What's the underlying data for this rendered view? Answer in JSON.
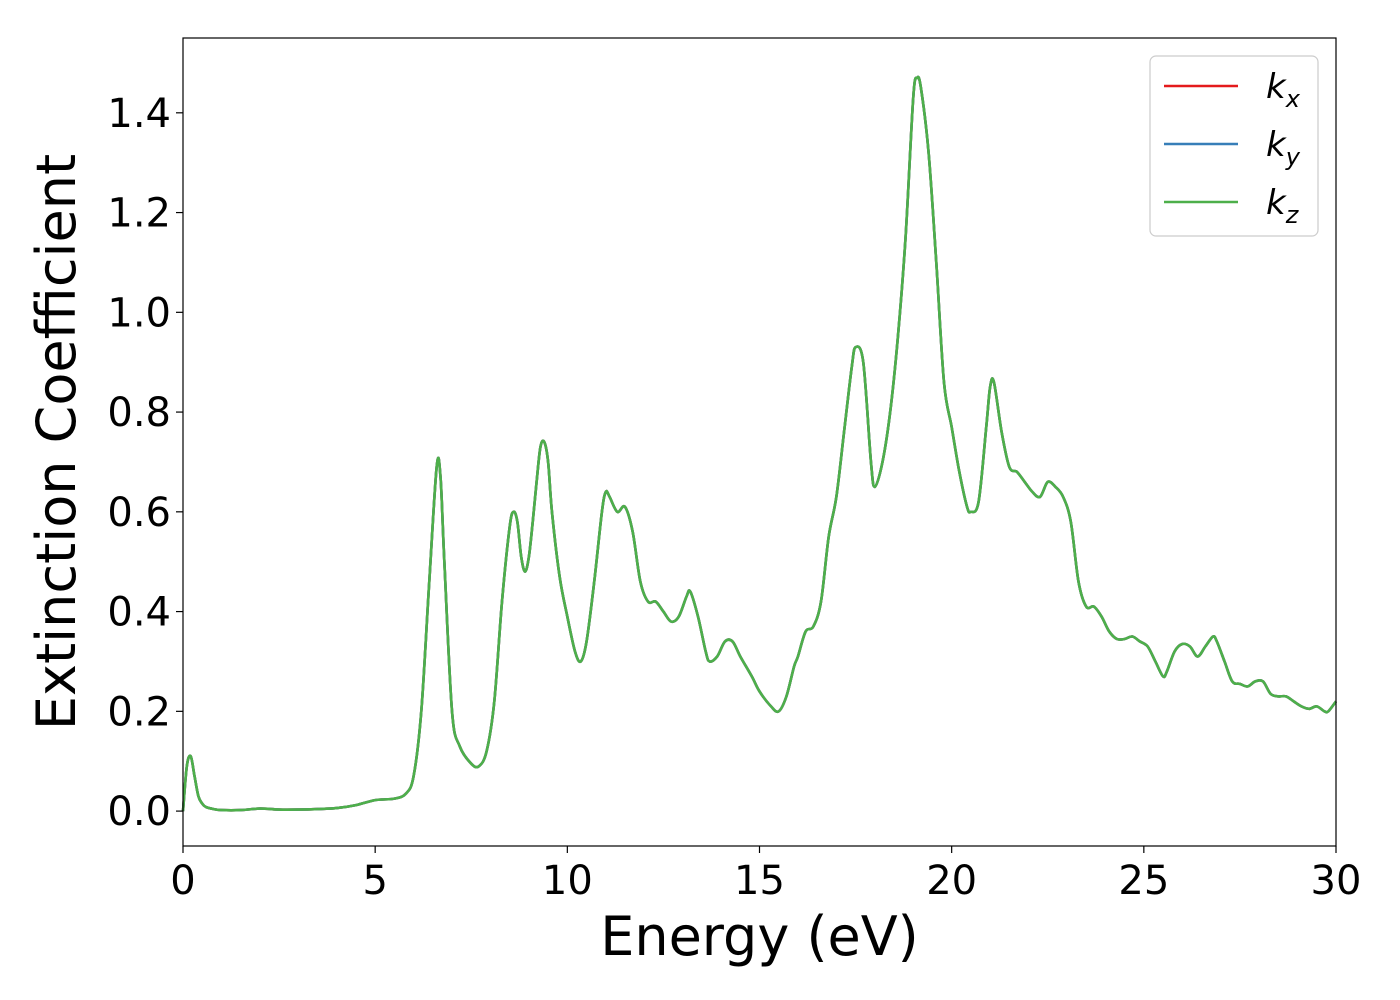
{
  "chart_data": {
    "type": "line",
    "title": "",
    "xlabel": "Energy (eV)",
    "ylabel": "Extinction Coefficient",
    "xlim": [
      0,
      30
    ],
    "ylim": [
      -0.07,
      1.55
    ],
    "xticks": [
      0,
      5,
      10,
      15,
      20,
      25,
      30
    ],
    "xtick_labels": [
      "0",
      "5",
      "10",
      "15",
      "20",
      "25",
      "30"
    ],
    "yticks": [
      0.0,
      0.2,
      0.4,
      0.6,
      0.8,
      1.0,
      1.2,
      1.4
    ],
    "ytick_labels": [
      "0.0",
      "0.2",
      "0.4",
      "0.6",
      "0.8",
      "1.0",
      "1.2",
      "1.4"
    ],
    "grid": false,
    "legend_position": "top-right",
    "series": [
      {
        "name": "k_x",
        "label_base": "k",
        "label_sub": "x",
        "color": "#e41a1c"
      },
      {
        "name": "k_y",
        "label_base": "k",
        "label_sub": "y",
        "color": "#377eb8"
      },
      {
        "name": "k_z",
        "label_base": "k",
        "label_sub": "z",
        "color": "#4daf4a"
      }
    ],
    "x": [
      0,
      0.1,
      0.2,
      0.3,
      0.4,
      0.5,
      0.6,
      0.8,
      1.0,
      1.5,
      2.0,
      2.5,
      3.0,
      3.5,
      4.0,
      4.5,
      5.0,
      5.5,
      5.8,
      6.0,
      6.2,
      6.4,
      6.6,
      6.7,
      6.8,
      7.0,
      7.2,
      7.5,
      7.7,
      7.9,
      8.1,
      8.3,
      8.5,
      8.6,
      8.7,
      8.8,
      8.9,
      9.0,
      9.1,
      9.2,
      9.3,
      9.4,
      9.5,
      9.6,
      9.8,
      10.0,
      10.2,
      10.35,
      10.5,
      10.7,
      10.9,
      11.0,
      11.1,
      11.3,
      11.5,
      11.7,
      11.9,
      12.1,
      12.3,
      12.5,
      12.7,
      12.9,
      13.1,
      13.2,
      13.4,
      13.6,
      13.7,
      13.9,
      14.1,
      14.3,
      14.5,
      14.8,
      15.0,
      15.3,
      15.5,
      15.7,
      15.9,
      16.0,
      16.2,
      16.4,
      16.6,
      16.8,
      17.0,
      17.2,
      17.4,
      17.5,
      17.7,
      17.9,
      18.0,
      18.2,
      18.4,
      18.6,
      18.8,
      19.0,
      19.1,
      19.2,
      19.4,
      19.6,
      19.8,
      20.0,
      20.2,
      20.4,
      20.5,
      20.7,
      20.9,
      21.0,
      21.1,
      21.3,
      21.5,
      21.7,
      21.9,
      22.1,
      22.3,
      22.5,
      22.7,
      22.9,
      23.1,
      23.3,
      23.5,
      23.7,
      23.9,
      24.1,
      24.3,
      24.5,
      24.7,
      24.9,
      25.1,
      25.3,
      25.5,
      25.6,
      25.8,
      26.0,
      26.2,
      26.4,
      26.6,
      26.8,
      26.9,
      27.1,
      27.3,
      27.5,
      27.7,
      27.9,
      28.1,
      28.3,
      28.5,
      28.7,
      28.9,
      29.1,
      29.3,
      29.5,
      29.7,
      29.8,
      30.0
    ],
    "y": [
      0.0,
      0.09,
      0.11,
      0.07,
      0.03,
      0.015,
      0.008,
      0.004,
      0.002,
      0.002,
      0.005,
      0.003,
      0.003,
      0.004,
      0.006,
      0.012,
      0.022,
      0.025,
      0.035,
      0.07,
      0.2,
      0.45,
      0.69,
      0.67,
      0.5,
      0.2,
      0.13,
      0.095,
      0.09,
      0.12,
      0.22,
      0.42,
      0.57,
      0.6,
      0.58,
      0.51,
      0.48,
      0.51,
      0.58,
      0.66,
      0.73,
      0.74,
      0.7,
      0.6,
      0.47,
      0.39,
      0.32,
      0.3,
      0.34,
      0.46,
      0.6,
      0.64,
      0.63,
      0.6,
      0.61,
      0.56,
      0.46,
      0.42,
      0.42,
      0.4,
      0.38,
      0.39,
      0.43,
      0.44,
      0.39,
      0.32,
      0.3,
      0.31,
      0.34,
      0.34,
      0.31,
      0.27,
      0.24,
      0.21,
      0.2,
      0.23,
      0.29,
      0.31,
      0.36,
      0.37,
      0.42,
      0.55,
      0.63,
      0.76,
      0.89,
      0.93,
      0.9,
      0.7,
      0.65,
      0.7,
      0.8,
      0.95,
      1.15,
      1.43,
      1.47,
      1.45,
      1.32,
      1.1,
      0.86,
      0.77,
      0.68,
      0.61,
      0.6,
      0.62,
      0.77,
      0.85,
      0.86,
      0.76,
      0.69,
      0.68,
      0.66,
      0.64,
      0.63,
      0.66,
      0.65,
      0.63,
      0.58,
      0.46,
      0.41,
      0.41,
      0.39,
      0.36,
      0.345,
      0.345,
      0.35,
      0.34,
      0.33,
      0.3,
      0.27,
      0.28,
      0.32,
      0.335,
      0.33,
      0.31,
      0.33,
      0.35,
      0.34,
      0.3,
      0.26,
      0.255,
      0.25,
      0.26,
      0.26,
      0.235,
      0.23,
      0.23,
      0.22,
      0.21,
      0.205,
      0.21,
      0.2,
      0.2,
      0.22
    ]
  }
}
